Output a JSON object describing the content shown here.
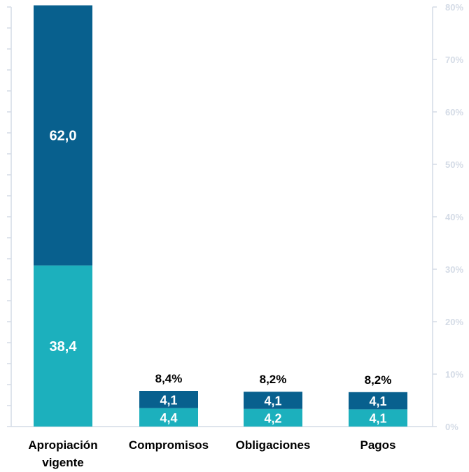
{
  "chart_data": {
    "type": "bar",
    "stacked": true,
    "categories": [
      "Apropiación vigente",
      "Compromisos",
      "Obligaciones",
      "Pagos"
    ],
    "category_lines": [
      [
        "Apropiación",
        "vigente"
      ],
      [
        "Compromisos"
      ],
      [
        "Obligaciones"
      ],
      [
        "Pagos"
      ]
    ],
    "series": [
      {
        "values": [
          38.4,
          4.4,
          4.2,
          4.1
        ],
        "labels": [
          "38,4",
          "4,4",
          "4,2",
          "4,1"
        ],
        "color": "#1cb0bd"
      },
      {
        "values": [
          62.0,
          4.1,
          4.1,
          4.1
        ],
        "labels": [
          "62,0",
          "4,1",
          "4,1",
          "4,1"
        ],
        "color": "#08608e"
      }
    ],
    "totals_pct": [
      "",
      "8,4%",
      "8,2%",
      "8,2%"
    ],
    "ylim": [
      0,
      100
    ],
    "y2lim": [
      0,
      80
    ],
    "y2ticks": [
      "0%",
      "10%",
      "20%",
      "30%",
      "40%",
      "50%",
      "60%",
      "70%",
      "80%"
    ],
    "y2tick_values": [
      0,
      10,
      20,
      30,
      40,
      50,
      60,
      70,
      80
    ],
    "grid": false,
    "legend": "none",
    "axis_color": "#d4dbe6"
  }
}
